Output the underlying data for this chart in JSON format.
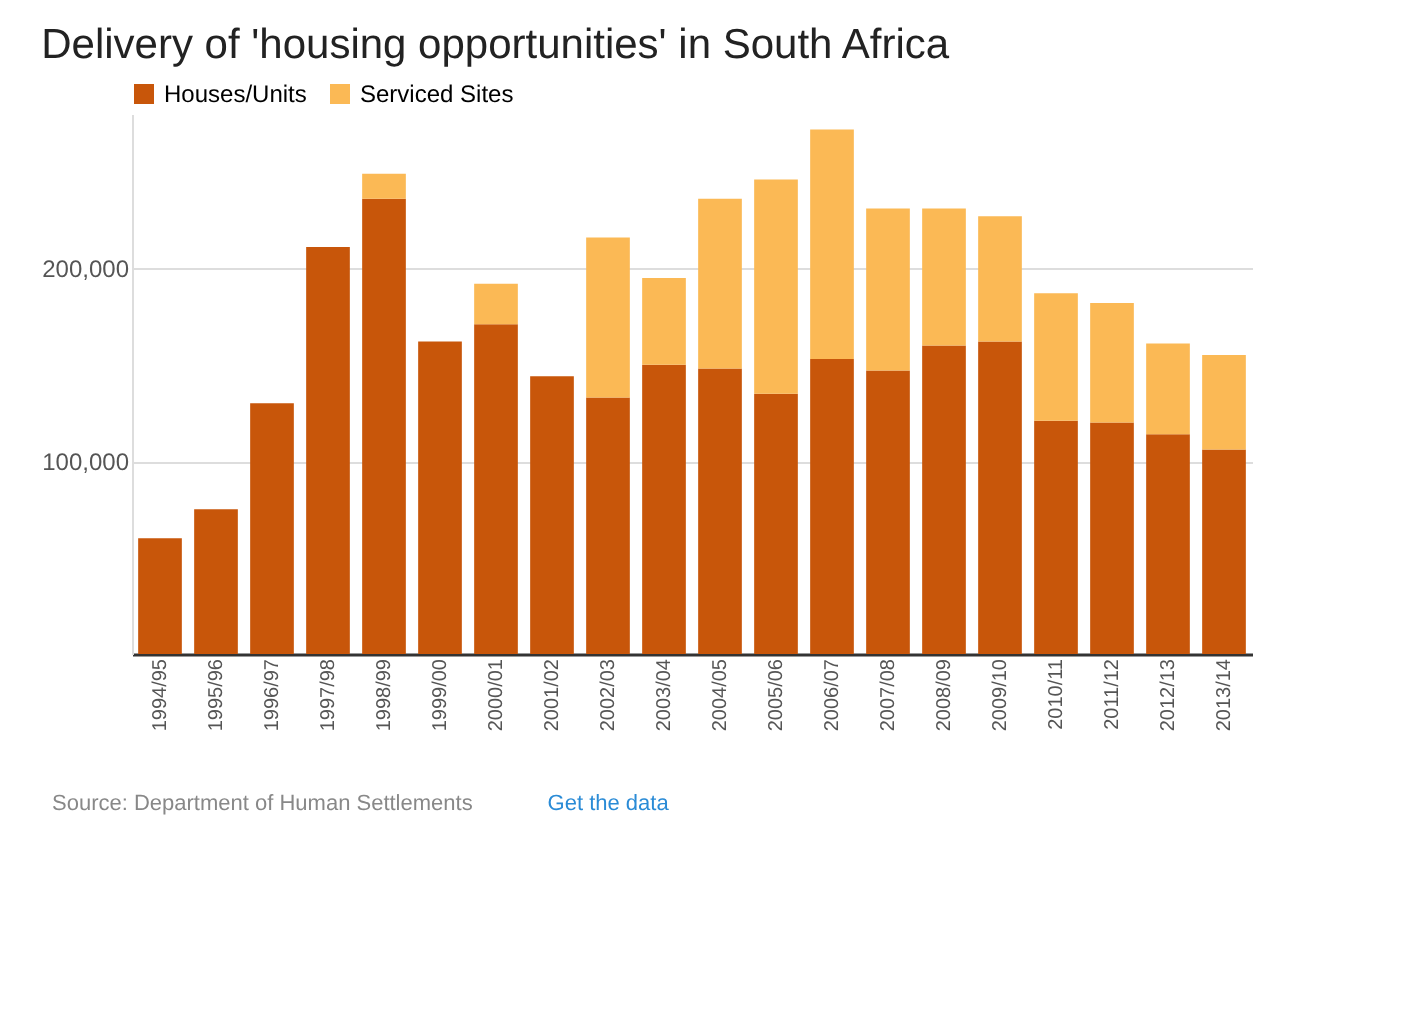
{
  "chart_data": {
    "type": "bar",
    "title": "Delivery of 'housing opportunities' in South Africa",
    "categories": [
      "1994/95",
      "1995/96",
      "1996/97",
      "1997/98",
      "1998/99",
      "1999/00",
      "2000/01",
      "2001/02",
      "2002/03",
      "2003/04",
      "2004/05",
      "2005/06",
      "2006/07",
      "2007/08",
      "2008/09",
      "2009/10",
      "2010/11",
      "2011/12",
      "2012/13",
      "2013/14"
    ],
    "series": [
      {
        "name": "Houses/Units",
        "color": "#c8560a",
        "values": [
          60000,
          75000,
          130000,
          211000,
          236000,
          162000,
          171000,
          144000,
          133000,
          150000,
          148000,
          135000,
          153000,
          147000,
          160000,
          162000,
          121000,
          120000,
          114000,
          106000
        ]
      },
      {
        "name": "Serviced Sites",
        "color": "#fbb955",
        "values": [
          0,
          0,
          0,
          0,
          13000,
          0,
          21000,
          0,
          83000,
          45000,
          88000,
          111000,
          119000,
          84000,
          71000,
          65000,
          66000,
          62000,
          47000,
          49000
        ]
      }
    ],
    "stacked": true,
    "ylim": [
      0,
      280000
    ],
    "yticks": [
      {
        "value": 100000,
        "label": "100,000"
      },
      {
        "value": 200000,
        "label": "200,000"
      }
    ],
    "grid": "y",
    "legend": "top left",
    "annotations": [
      "Source: Department of Human Settlements",
      "Get the data"
    ]
  }
}
